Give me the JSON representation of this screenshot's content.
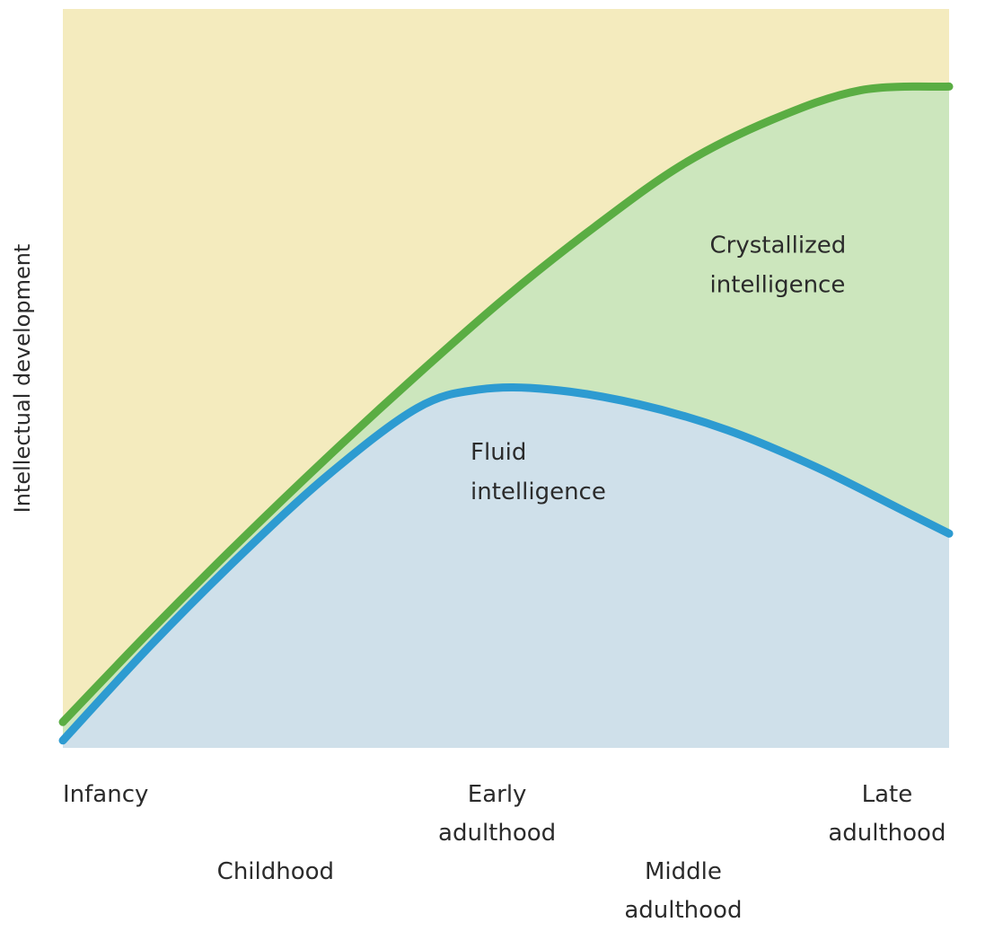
{
  "chart_data": {
    "type": "area",
    "title": "",
    "ylabel": "Intellectual development",
    "xlabel": "",
    "xlim": [
      0,
      10
    ],
    "ylim": [
      0,
      10
    ],
    "grid": false,
    "x_ticks": [
      {
        "x": 0,
        "lines": [
          "Infancy"
        ],
        "row": 1
      },
      {
        "x": 2.4,
        "lines": [
          "Childhood"
        ],
        "row": 2
      },
      {
        "x": 4.9,
        "lines": [
          "Early",
          "adulthood"
        ],
        "row": 1
      },
      {
        "x": 7.0,
        "lines": [
          "Middle",
          "adulthood"
        ],
        "row": 2
      },
      {
        "x": 9.3,
        "lines": [
          "Late",
          "adulthood"
        ],
        "row": 1
      }
    ],
    "series": [
      {
        "name": "Crystallized intelligence",
        "label_lines": [
          "Crystallized",
          "intelligence"
        ],
        "label_anchor": [
          7.3,
          6.7
        ],
        "line_color": "#5aad43",
        "fill_color": "#cce6bd",
        "x": [
          0,
          1,
          2,
          3,
          4,
          5,
          6,
          7,
          8,
          9,
          10
        ],
        "y": [
          0.35,
          1.6,
          2.8,
          3.95,
          5.05,
          6.1,
          7.05,
          7.9,
          8.5,
          8.9,
          8.95
        ]
      },
      {
        "name": "Fluid intelligence",
        "label_lines": [
          "Fluid",
          "intelligence"
        ],
        "label_anchor": [
          4.6,
          3.9
        ],
        "line_color": "#2d9bd1",
        "fill_color": "#cfe0ea",
        "x": [
          0,
          1,
          2,
          3,
          4,
          4.7,
          5.5,
          6.5,
          7.5,
          8.5,
          9.5,
          10
        ],
        "y": [
          0.1,
          1.4,
          2.6,
          3.7,
          4.6,
          4.85,
          4.85,
          4.65,
          4.3,
          3.8,
          3.2,
          2.9
        ]
      }
    ],
    "background_color": "#f4ebbe"
  }
}
